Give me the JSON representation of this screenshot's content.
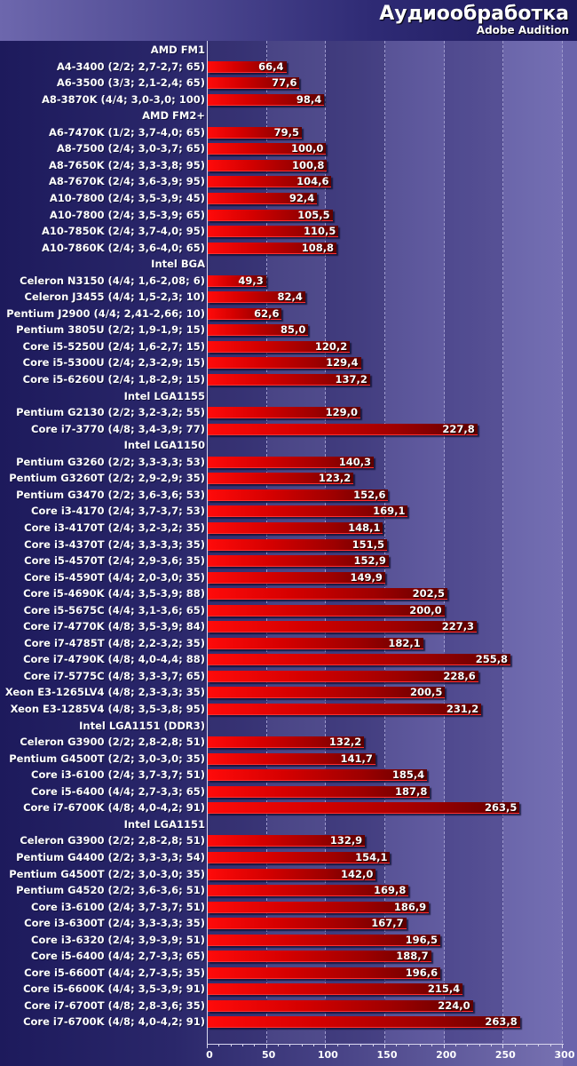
{
  "chart_data": {
    "type": "bar",
    "orientation": "horizontal",
    "title": "Аудиообработка",
    "subtitle": "Adobe Audition",
    "xlabel": "",
    "ylabel": "",
    "xlim": [
      0,
      300
    ],
    "x_ticks": [
      "0",
      "50",
      "100",
      "150",
      "200",
      "250",
      "300"
    ],
    "grid": true,
    "legend": "none",
    "rows": [
      {
        "group": "AMD FM1"
      },
      {
        "label": "A4-3400 (2/2; 2,7-2,7; 65)",
        "value": 66.4,
        "display": "66,4"
      },
      {
        "label": "A6-3500 (3/3; 2,1-2,4; 65)",
        "value": 77.6,
        "display": "77,6"
      },
      {
        "label": "A8-3870K (4/4; 3,0-3,0; 100)",
        "value": 98.4,
        "display": "98,4"
      },
      {
        "group": "AMD FM2+"
      },
      {
        "label": "A6-7470K (1/2; 3,7-4,0; 65)",
        "value": 79.5,
        "display": "79,5"
      },
      {
        "label": "A8-7500 (2/4; 3,0-3,7; 65)",
        "value": 100.0,
        "display": "100,0"
      },
      {
        "label": "A8-7650K (2/4; 3,3-3,8; 95)",
        "value": 100.8,
        "display": "100,8"
      },
      {
        "label": "A8-7670K (2/4; 3,6-3,9; 95)",
        "value": 104.6,
        "display": "104,6"
      },
      {
        "label": "A10-7800 (2/4; 3,5-3,9; 45)",
        "value": 92.4,
        "display": "92,4"
      },
      {
        "label": "A10-7800 (2/4; 3,5-3,9; 65)",
        "value": 105.5,
        "display": "105,5"
      },
      {
        "label": "A10-7850K (2/4; 3,7-4,0; 95)",
        "value": 110.5,
        "display": "110,5"
      },
      {
        "label": "A10-7860K (2/4; 3,6-4,0; 65)",
        "value": 108.8,
        "display": "108,8"
      },
      {
        "group": "Intel BGA"
      },
      {
        "label": "Celeron N3150 (4/4; 1,6-2,08; 6)",
        "value": 49.3,
        "display": "49,3"
      },
      {
        "label": "Celeron J3455 (4/4; 1,5-2,3; 10)",
        "value": 82.4,
        "display": "82,4"
      },
      {
        "label": "Pentium J2900 (4/4; 2,41-2,66; 10)",
        "value": 62.6,
        "display": "62,6"
      },
      {
        "label": "Pentium 3805U (2/2; 1,9-1,9; 15)",
        "value": 85.0,
        "display": "85,0"
      },
      {
        "label": "Core i5-5250U (2/4; 1,6-2,7; 15)",
        "value": 120.2,
        "display": "120,2"
      },
      {
        "label": "Core i5-5300U (2/4; 2,3-2,9; 15)",
        "value": 129.4,
        "display": "129,4"
      },
      {
        "label": "Core i5-6260U (2/4; 1,8-2,9; 15)",
        "value": 137.2,
        "display": "137,2"
      },
      {
        "group": "Intel LGA1155"
      },
      {
        "label": "Pentium G2130 (2/2; 3,2-3,2; 55)",
        "value": 129.0,
        "display": "129,0"
      },
      {
        "label": "Core i7-3770 (4/8; 3,4-3,9; 77)",
        "value": 227.8,
        "display": "227,8"
      },
      {
        "group": "Intel LGA1150"
      },
      {
        "label": "Pentium G3260 (2/2; 3,3-3,3; 53)",
        "value": 140.3,
        "display": "140,3"
      },
      {
        "label": "Pentium G3260T (2/2; 2,9-2,9; 35)",
        "value": 123.2,
        "display": "123,2"
      },
      {
        "label": "Pentium G3470 (2/2; 3,6-3,6; 53)",
        "value": 152.6,
        "display": "152,6"
      },
      {
        "label": "Core i3-4170 (2/4; 3,7-3,7; 53)",
        "value": 169.1,
        "display": "169,1"
      },
      {
        "label": "Core i3-4170T  (2/4; 3,2-3,2; 35)",
        "value": 148.1,
        "display": "148,1"
      },
      {
        "label": "Core i3-4370T (2/4; 3,3-3,3; 35)",
        "value": 151.5,
        "display": "151,5"
      },
      {
        "label": "Core i5-4570T (2/4; 2,9-3,6; 35)",
        "value": 152.9,
        "display": "152,9"
      },
      {
        "label": "Core i5-4590T (4/4; 2,0-3,0; 35)",
        "value": 149.9,
        "display": "149,9"
      },
      {
        "label": "Core i5-4690K (4/4; 3,5-3,9; 88)",
        "value": 202.5,
        "display": "202,5"
      },
      {
        "label": "Core i5-5675C (4/4; 3,1-3,6; 65)",
        "value": 200.0,
        "display": "200,0"
      },
      {
        "label": "Core i7-4770K (4/8; 3,5-3,9; 84)",
        "value": 227.3,
        "display": "227,3"
      },
      {
        "label": "Core i7-4785T (4/8; 2,2-3,2; 35)",
        "value": 182.1,
        "display": "182,1"
      },
      {
        "label": "Core i7-4790K (4/8; 4,0-4,4; 88)",
        "value": 255.8,
        "display": "255,8"
      },
      {
        "label": "Core i7-5775C (4/8; 3,3-3,7; 65)",
        "value": 228.6,
        "display": "228,6"
      },
      {
        "label": "Xeon E3-1265LV4 (4/8; 2,3-3,3; 35)",
        "value": 200.5,
        "display": "200,5"
      },
      {
        "label": "Xeon E3-1285V4 (4/8; 3,5-3,8; 95)",
        "value": 231.2,
        "display": "231,2"
      },
      {
        "group": "Intel LGA1151 (DDR3)"
      },
      {
        "label": "Celeron G3900 (2/2; 2,8-2,8; 51)",
        "value": 132.2,
        "display": "132,2"
      },
      {
        "label": "Pentium G4500T (2/2; 3,0-3,0; 35)",
        "value": 141.7,
        "display": "141,7"
      },
      {
        "label": "Core i3-6100 (2/4; 3,7-3,7; 51)",
        "value": 185.4,
        "display": "185,4"
      },
      {
        "label": "Core i5-6400 (4/4; 2,7-3,3; 65)",
        "value": 187.8,
        "display": "187,8"
      },
      {
        "label": "Core i7-6700K (4/8; 4,0-4,2; 91)",
        "value": 263.5,
        "display": "263,5"
      },
      {
        "group": "Intel LGA1151"
      },
      {
        "label": "Celeron G3900 (2/2; 2,8-2,8; 51)",
        "value": 132.9,
        "display": "132,9"
      },
      {
        "label": "Pentium G4400 (2/2; 3,3-3,3; 54)",
        "value": 154.1,
        "display": "154,1"
      },
      {
        "label": "Pentium G4500T (2/2; 3,0-3,0; 35)",
        "value": 142.0,
        "display": "142,0"
      },
      {
        "label": "Pentium G4520 (2/2; 3,6-3,6; 51)",
        "value": 169.8,
        "display": "169,8"
      },
      {
        "label": "Core i3-6100 (2/4; 3,7-3,7; 51)",
        "value": 186.9,
        "display": "186,9"
      },
      {
        "label": "Core i3-6300T (2/4; 3,3-3,3; 35)",
        "value": 167.7,
        "display": "167,7"
      },
      {
        "label": "Core i3-6320 (2/4; 3,9-3,9; 51)",
        "value": 196.5,
        "display": "196,5"
      },
      {
        "label": "Core i5-6400 (4/4; 2,7-3,3; 65)",
        "value": 188.7,
        "display": "188,7"
      },
      {
        "label": "Core i5-6600T (4/4; 2,7-3,5; 35)",
        "value": 196.6,
        "display": "196,6"
      },
      {
        "label": "Core i5-6600K (4/4; 3,5-3,9; 91)",
        "value": 215.4,
        "display": "215,4"
      },
      {
        "label": "Core i7-6700T (4/8; 2,8-3,6; 35)",
        "value": 224.0,
        "display": "224,0"
      },
      {
        "label": "Core i7-6700K (4/8; 4,0-4,2; 91)",
        "value": 263.8,
        "display": "263,8"
      }
    ]
  },
  "colors": {
    "bar": "#e00000",
    "background": "#2a276a",
    "text": "#ffffff"
  }
}
